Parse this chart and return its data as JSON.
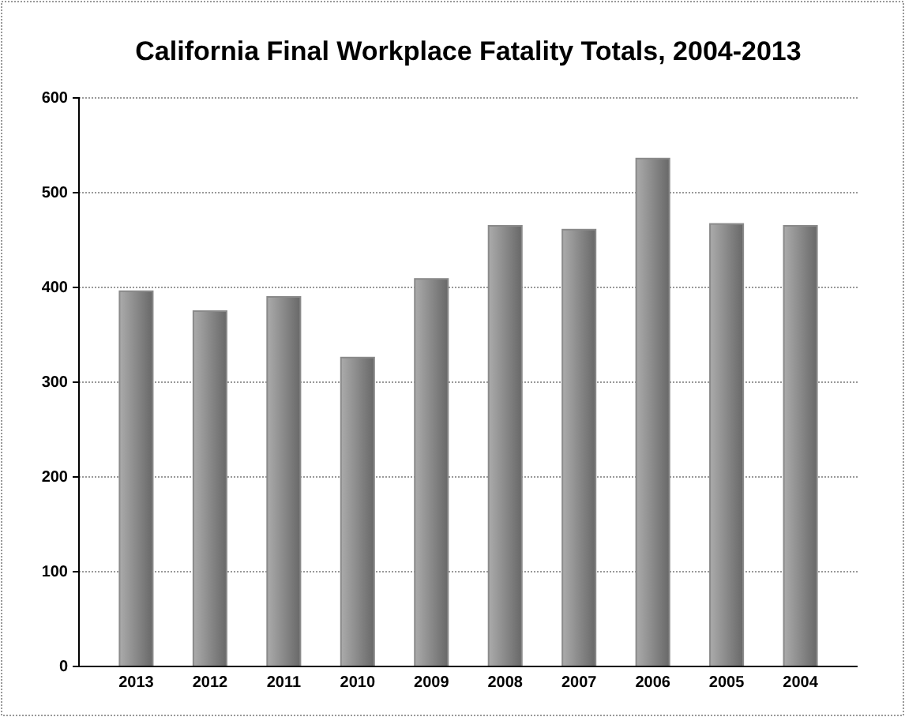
{
  "chart_data": {
    "type": "bar",
    "title": "California Final Workplace Fatality Totals, 2004-2013",
    "categories": [
      "2013",
      "2012",
      "2011",
      "2010",
      "2009",
      "2008",
      "2007",
      "2006",
      "2005",
      "2004"
    ],
    "values": [
      396,
      375,
      390,
      326,
      409,
      465,
      461,
      536,
      467,
      465
    ],
    "color": "#8a8a8a",
    "ylim": [
      0,
      600
    ],
    "yticks": [
      0,
      100,
      200,
      300,
      400,
      500,
      600
    ],
    "grid": "y"
  }
}
